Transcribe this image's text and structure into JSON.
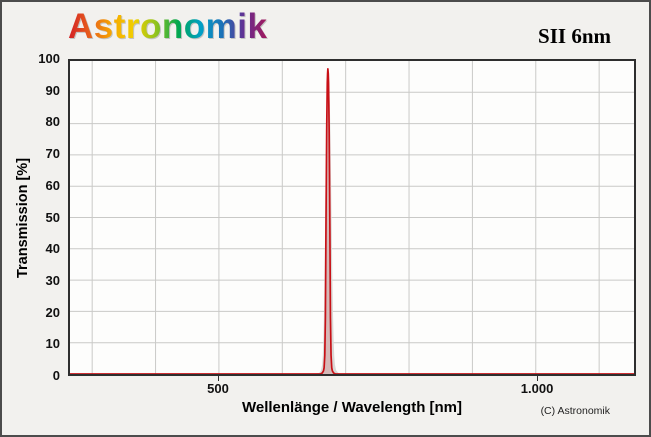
{
  "header": {
    "logo_text": "Astronomik",
    "filter_title": "SII 6nm"
  },
  "colors": {
    "logo_gradient": [
      "#d21f26",
      "#e8601c",
      "#f6a800",
      "#f2d000",
      "#8fc31f",
      "#00a651",
      "#00a0c6",
      "#1d70b7",
      "#662d91",
      "#a3195b"
    ],
    "curve_red": "#c81016",
    "tolerance_gray": "#d9d8d6",
    "grid_gray": "#c9c9c7"
  },
  "chart_data": {
    "type": "line",
    "title": "SII 6nm",
    "xlabel": "Wellenlänge / Wavelength [nm]",
    "ylabel": "Transmission [%]",
    "copyright": "(C) Astronomik",
    "legend": "none",
    "grid": true,
    "xlim": [
      265,
      1155
    ],
    "ylim": [
      0,
      100
    ],
    "x_ticks": [
      {
        "value": 500,
        "label": "500"
      },
      {
        "value": 1000,
        "label": "1.000"
      }
    ],
    "y_ticks": [
      {
        "value": 100,
        "label": "100"
      },
      {
        "value": 90,
        "label": "90"
      },
      {
        "value": 80,
        "label": "80"
      },
      {
        "value": 70,
        "label": "70"
      },
      {
        "value": 60,
        "label": "60"
      },
      {
        "value": 50,
        "label": "50"
      },
      {
        "value": 40,
        "label": "40"
      },
      {
        "value": 30,
        "label": "30"
      },
      {
        "value": 20,
        "label": "20"
      },
      {
        "value": 10,
        "label": "10"
      },
      {
        "value": 0,
        "label": "0"
      }
    ],
    "x_gridlines": [
      300,
      400,
      500,
      600,
      700,
      800,
      900,
      1000,
      1100
    ],
    "y_gridlines": [
      10,
      20,
      30,
      40,
      50,
      60,
      70,
      80,
      90
    ],
    "series": [
      {
        "name": "tolerance-band",
        "stroke": "none",
        "fill": "#d9d8d6",
        "fill_opacity": 1,
        "points": [
          [
            265,
            0
          ],
          [
            648,
            0
          ],
          [
            658,
            0.3
          ],
          [
            661,
            1
          ],
          [
            663,
            3
          ],
          [
            664,
            6
          ],
          [
            665,
            12
          ],
          [
            666,
            22
          ],
          [
            667,
            38
          ],
          [
            668,
            56
          ],
          [
            669,
            72
          ],
          [
            670,
            84
          ],
          [
            671,
            92
          ],
          [
            672,
            96
          ],
          [
            673,
            96
          ],
          [
            674,
            92
          ],
          [
            675,
            86
          ],
          [
            676,
            76
          ],
          [
            677,
            62
          ],
          [
            678,
            46
          ],
          [
            679,
            31
          ],
          [
            680,
            19
          ],
          [
            681,
            11
          ],
          [
            682,
            6
          ],
          [
            683,
            3
          ],
          [
            685,
            1.2
          ],
          [
            688,
            0.4
          ],
          [
            692,
            0
          ],
          [
            1155,
            0
          ]
        ]
      },
      {
        "name": "transmission-curve",
        "stroke": "#c81016",
        "stroke_width": 1.7,
        "fill": "#c81016",
        "fill_opacity": 0.16,
        "points": [
          [
            265,
            0
          ],
          [
            600,
            0
          ],
          [
            650,
            0
          ],
          [
            660,
            0
          ],
          [
            663,
            0.3
          ],
          [
            665,
            1
          ],
          [
            666,
            2
          ],
          [
            667,
            6
          ],
          [
            668,
            18
          ],
          [
            669,
            48
          ],
          [
            670,
            78
          ],
          [
            671,
            93
          ],
          [
            671.5,
            96
          ],
          [
            672,
            97.5
          ],
          [
            672.5,
            96
          ],
          [
            673,
            93
          ],
          [
            674,
            78
          ],
          [
            675,
            48
          ],
          [
            676,
            18
          ],
          [
            677,
            6
          ],
          [
            678,
            2
          ],
          [
            679,
            1
          ],
          [
            681,
            0.3
          ],
          [
            684,
            0
          ],
          [
            700,
            0
          ],
          [
            800,
            0
          ],
          [
            900,
            0
          ],
          [
            1000,
            0
          ],
          [
            1155,
            0
          ]
        ]
      }
    ]
  }
}
